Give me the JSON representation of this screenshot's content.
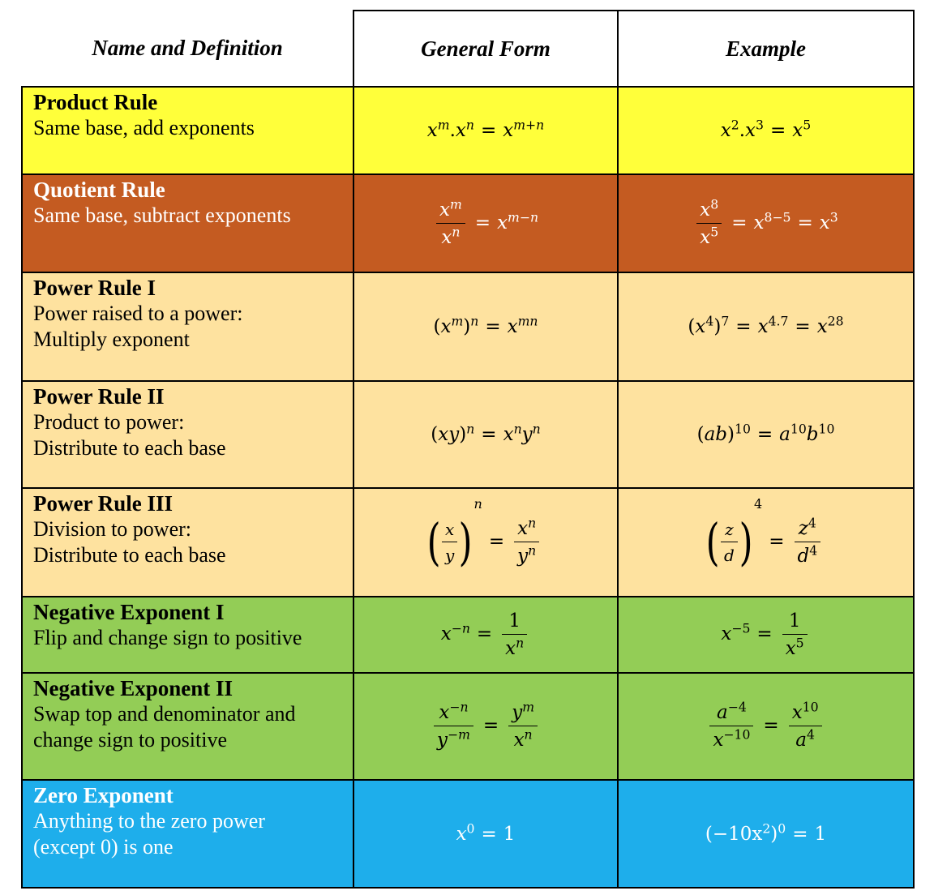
{
  "header": {
    "col1": "Name and Definition",
    "col2": "General Form",
    "col3": "Example"
  },
  "rules": [
    {
      "title": "Product Rule",
      "desc": [
        "Same base, add exponents"
      ]
    },
    {
      "title": "Quotient Rule",
      "desc": [
        "Same base, subtract exponents"
      ]
    },
    {
      "title": "Power Rule I",
      "desc": [
        "Power raised to a power:",
        "Multiply exponent"
      ]
    },
    {
      "title": "Power Rule II",
      "desc": [
        "Product to power:",
        "Distribute to each base"
      ]
    },
    {
      "title": "Power Rule III",
      "desc": [
        "Division to power:",
        "Distribute to each base"
      ]
    },
    {
      "title": "Negative Exponent I",
      "desc": [
        "Flip and change sign to positive"
      ]
    },
    {
      "title": "Negative Exponent II",
      "desc": [
        "Swap top and denominator and",
        "change sign to positive"
      ]
    },
    {
      "title": "Zero Exponent",
      "desc": [
        "Anything to the zero power",
        "(except 0) is one"
      ]
    }
  ],
  "colors": {
    "product": "#ffff3a",
    "quotient": "#c45b21",
    "power": "#fee29f",
    "negative": "#93cd56",
    "zero": "#1eaeeb"
  },
  "formulas": {
    "product": {
      "general": {
        "b1": "x",
        "e1": "m",
        "b2": "x",
        "e2": "n",
        "rb": "x",
        "re": "m+n"
      },
      "example": {
        "b1": "x",
        "e1": "2",
        "b2": "x",
        "e2": "3",
        "rb": "x",
        "re": "5"
      }
    },
    "quotient": {
      "general": {
        "nb": "x",
        "ne": "m",
        "db": "x",
        "de": "n",
        "rb": "x",
        "re": "m−n"
      },
      "example": {
        "nb": "x",
        "ne": "8",
        "db": "x",
        "de": "5",
        "mb": "x",
        "me": "8−5",
        "rb": "x",
        "re": "3"
      }
    },
    "power1": {
      "general": {
        "b": "x",
        "e1": "m",
        "e2": "n",
        "rb": "x",
        "re": "mn"
      },
      "example": {
        "b": "x",
        "e1": "4",
        "e2": "7",
        "mb": "x",
        "me": "4.7",
        "rb": "x",
        "re": "28"
      }
    },
    "power2": {
      "general": {
        "base": "xy",
        "e": "n",
        "r1": "x",
        "r1e": "n",
        "r2": "y",
        "r2e": "n"
      },
      "example": {
        "base": "ab",
        "e": "10",
        "r1": "a",
        "r1e": "10",
        "r2": "b",
        "r2e": "10"
      }
    },
    "power3": {
      "general": {
        "n": "x",
        "d": "y",
        "e": "n",
        "rn": "x",
        "rne": "n",
        "rd": "y",
        "rde": "n"
      },
      "example": {
        "n": "z",
        "d": "d",
        "e": "4",
        "rn": "z",
        "rne": "4",
        "rd": "d",
        "rde": "4"
      }
    },
    "neg1": {
      "general": {
        "b": "x",
        "e": "−n",
        "one": "1",
        "db": "x",
        "de": "n"
      },
      "example": {
        "b": "x",
        "e": "−5",
        "one": "1",
        "db": "x",
        "de": "5"
      }
    },
    "neg2": {
      "general": {
        "nb": "x",
        "ne": "−n",
        "db": "y",
        "de": "−m",
        "rnb": "y",
        "rne": "m",
        "rdb": "x",
        "rde": "n"
      },
      "example": {
        "nb": "a",
        "ne": "−4",
        "db": "x",
        "de": "−10",
        "rnb": "x",
        "rne": "10",
        "rdb": "a",
        "rde": "4"
      }
    },
    "zero": {
      "general": {
        "b": "x",
        "e": "0",
        "r": "1"
      },
      "example": {
        "b": "(−10x",
        "be": "2",
        "close": ")",
        "e": "0",
        "r": "1"
      }
    }
  },
  "symbols": {
    "eq": "=",
    "dot": ".",
    "lp": "(",
    "rp": ")"
  }
}
